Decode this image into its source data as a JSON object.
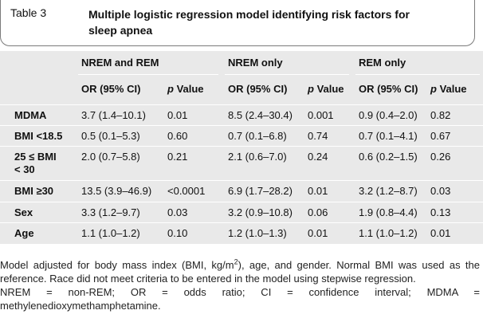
{
  "header": {
    "label": "Table 3",
    "title": "Multiple logistic regression model identifying risk factors for sleep apnea"
  },
  "groups": [
    "NREM and REM",
    "NREM only",
    "REM only"
  ],
  "subheaders": {
    "or": "OR (95% CI)",
    "p_italic": "p",
    "p_rest": " Value"
  },
  "rows": [
    {
      "label": "MDMA",
      "c": [
        "3.7 (1.4–10.1)",
        "0.01",
        "8.5 (2.4–30.4)",
        "0.001",
        "0.9 (0.4–2.0)",
        "0.82"
      ]
    },
    {
      "label": "BMI <18.5",
      "c": [
        "0.5 (0.1–5.3)",
        "0.60",
        "0.7 (0.1–6.8)",
        "0.74",
        "0.7 (0.1–4.1)",
        "0.67"
      ]
    },
    {
      "label_line1": "25 ≤ BMI",
      "label_line2": "< 30",
      "c": [
        "2.0 (0.7–5.8)",
        "0.21",
        "2.1 (0.6–7.0)",
        "0.24",
        "0.6 (0.2–1.5)",
        "0.26"
      ]
    },
    {
      "label": "BMI ≥30",
      "c": [
        "13.5 (3.9–46.9)",
        "<0.0001",
        "6.9 (1.7–28.2)",
        "0.01",
        "3.2 (1.2–8.7)",
        "0.03"
      ]
    },
    {
      "label": "Sex",
      "c": [
        "3.3 (1.2–9.7)",
        "0.03",
        "3.2 (0.9–10.8)",
        "0.06",
        "1.9 (0.8–4.4)",
        "0.13"
      ]
    },
    {
      "label": "Age",
      "c": [
        "1.1 (1.0–1.2)",
        "0.10",
        "1.2 (1.0–1.3)",
        "0.01",
        "1.1 (1.0–1.2)",
        "0.01"
      ]
    }
  ],
  "footnote": {
    "pre": "Model adjusted for body mass index (BMI, kg/m",
    "sup": "2",
    "post": "), age, and gender. Normal BMI was used as the reference. Race did not meet criteria to be entered in the model using stepwise regression.",
    "abbrev": "NREM = non-REM; OR = odds ratio; CI = confidence interval; MDMA = methylenedioxymethamphetamine."
  }
}
